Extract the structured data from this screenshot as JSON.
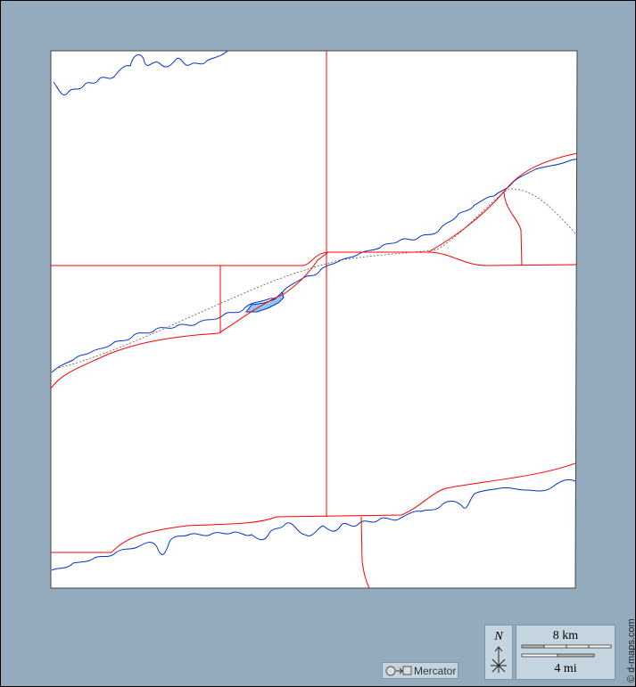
{
  "colors": {
    "background": "#93abbd",
    "land": "#ffffff",
    "roads": "#ff0000",
    "rivers": "#0033cc",
    "lake": "#8ec8f0",
    "railway": "#555555"
  },
  "legend": {
    "projection": "Mercator",
    "projection_icon": "circle-to-square-icon",
    "north_label": "N",
    "scale_km": "8 km",
    "scale_mi": "4 mi"
  },
  "credit": "© d-maps.com"
}
